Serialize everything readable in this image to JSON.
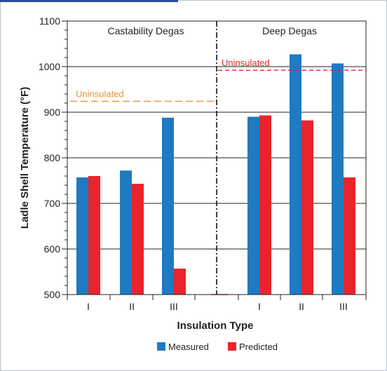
{
  "chart_data": {
    "type": "bar",
    "ylabel": "Ladle Shell Temperature (°F)",
    "xlabel": "Insulation Type",
    "ylim": [
      500,
      1100
    ],
    "yticks": [
      500,
      600,
      700,
      800,
      900,
      1000,
      1100
    ],
    "grid": "horizontal",
    "groups": [
      {
        "title": "Castability Degas",
        "categories": [
          "I",
          "II",
          "III"
        ],
        "series": [
          {
            "name": "Measured",
            "values": [
              757,
              772,
              888
            ]
          },
          {
            "name": "Predicted",
            "values": [
              760,
              743,
              557
            ]
          }
        ],
        "reference": {
          "label": "Uninsulated",
          "value": 924,
          "color": "#e8913a"
        }
      },
      {
        "title": "Deep Degas",
        "categories": [
          "I",
          "II",
          "III"
        ],
        "series": [
          {
            "name": "Measured",
            "values": [
              890,
              1027,
              1007
            ]
          },
          {
            "name": "Predicted",
            "values": [
              893,
              882,
              757
            ]
          }
        ],
        "reference": {
          "label": "Uninsulated",
          "value": 992,
          "color": "#e8242c"
        }
      }
    ],
    "legend": {
      "position": "bottom",
      "items": [
        {
          "name": "Measured",
          "color": "#1f7ac2"
        },
        {
          "name": "Predicted",
          "color": "#e8242c"
        }
      ]
    },
    "colors": {
      "measured": "#1f7ac2",
      "predicted": "#e8242c"
    }
  }
}
